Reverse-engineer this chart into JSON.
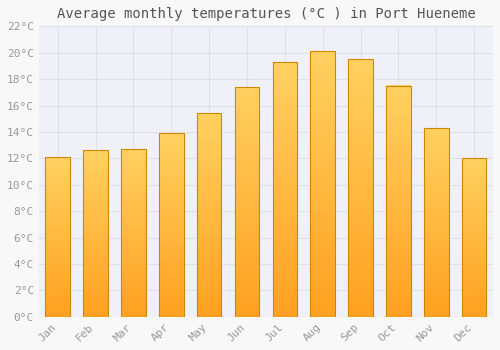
{
  "months": [
    "Jan",
    "Feb",
    "Mar",
    "Apr",
    "May",
    "Jun",
    "Jul",
    "Aug",
    "Sep",
    "Oct",
    "Nov",
    "Dec"
  ],
  "values": [
    12.1,
    12.6,
    12.7,
    13.9,
    15.4,
    17.4,
    19.3,
    20.1,
    19.5,
    17.5,
    14.3,
    12.0
  ],
  "bar_color_top": "#FFD060",
  "bar_color_bottom": "#FFA020",
  "bar_edge_color": "#CC8800",
  "title": "Average monthly temperatures (°C ) in Port Hueneme",
  "title_fontsize": 10,
  "ylim": [
    0,
    22
  ],
  "ytick_step": 2,
  "background_color": "#f8f8f8",
  "plot_bg_color": "#f0f0f8",
  "grid_color": "#e0e0e8",
  "tick_label_color": "#999999",
  "tick_label_fontsize": 8,
  "title_color": "#555555",
  "bar_width": 0.65
}
